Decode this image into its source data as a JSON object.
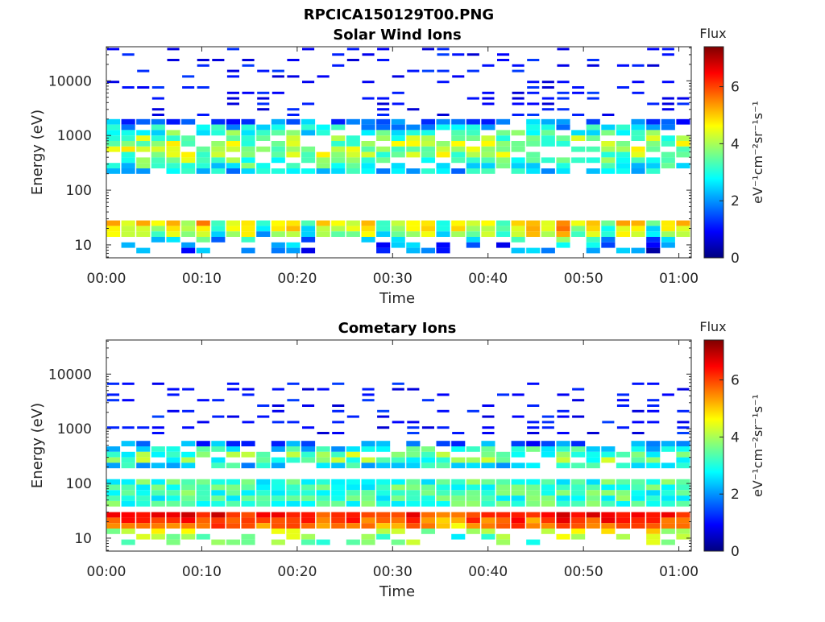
{
  "figure_title": "RPCICA150129T00.PNG",
  "colorbar_label": "Flux",
  "colorbar_unit": "eV⁻¹cm⁻²sr⁻¹s⁻¹",
  "colorbar_ticks": [
    "0",
    "2",
    "4",
    "6"
  ],
  "colorbar_range": [
    0,
    7.4
  ],
  "colormap": "jet",
  "chart_data": [
    {
      "type": "heatmap",
      "title": "Solar Wind Ions",
      "xlabel": "Time",
      "ylabel": "Energy (eV)",
      "x_tick_labels": [
        "00:00",
        "00:10",
        "00:20",
        "00:30",
        "00:40",
        "00:50",
        "01:00"
      ],
      "x_ticks_minutes": [
        0,
        10,
        20,
        30,
        40,
        50,
        60
      ],
      "xlim_minutes": [
        0,
        61.3
      ],
      "y_scale": "log",
      "y_tick_labels": [
        "10",
        "100",
        "1000",
        "10000"
      ],
      "y_ticks": [
        10,
        100,
        1000,
        10000
      ],
      "ylim": [
        5.8,
        42000
      ],
      "n_time_bins": 39,
      "low_energy_band": {
        "energy_eV": [
          15,
          28
        ],
        "flux": [
          5.2,
          4.6,
          4.9,
          4.3,
          5.0,
          4.1,
          5.3,
          3.2,
          4.7,
          5.1,
          3.0,
          4.8,
          5.2,
          3.1,
          4.9,
          4.4,
          4.5,
          5.0,
          3.5,
          4.6,
          4.8,
          5.1,
          3.3,
          4.9,
          4.2,
          4.7,
          3.4,
          5.0,
          5.5,
          4.6,
          5.7,
          4.3,
          5.2,
          3.6,
          5.0,
          4.8,
          3.2,
          4.9,
          5.1
        ]
      },
      "main_band": {
        "energy_eV": [
          200,
          2000
        ],
        "peak_flux": 4.0
      },
      "sparse_high_energy_counts": {
        "energy_eV": [
          2000,
          40000
        ],
        "flux": 0.6
      }
    },
    {
      "type": "heatmap",
      "title": "Cometary Ions",
      "xlabel": "Time",
      "ylabel": "Energy (eV)",
      "x_tick_labels": [
        "00:00",
        "00:10",
        "00:20",
        "00:30",
        "00:40",
        "00:50",
        "01:00"
      ],
      "x_ticks_minutes": [
        0,
        10,
        20,
        30,
        40,
        50,
        60
      ],
      "xlim_minutes": [
        0,
        61.3
      ],
      "y_scale": "log",
      "y_tick_labels": [
        "10",
        "100",
        "1000",
        "10000"
      ],
      "y_ticks": [
        10,
        100,
        1000,
        10000
      ],
      "ylim": [
        5.8,
        42000
      ],
      "n_time_bins": 39,
      "low_energy_band": {
        "energy_eV": [
          15,
          30
        ],
        "flux": [
          6.2,
          6.5,
          6.3,
          6.6,
          6.4,
          6.5,
          6.1,
          6.6,
          6.4,
          6.3,
          6.2,
          6.5,
          6.6,
          6.3,
          5.6,
          6.4,
          6.5,
          6.1,
          5.8,
          6.2,
          6.5,
          6.0,
          5.5,
          5.3,
          6.3,
          5.9,
          6.4,
          6.6,
          5.9,
          6.3,
          6.7,
          6.5,
          6.4,
          6.6,
          6.5,
          6.4,
          6.7,
          6.3,
          6.1
        ]
      },
      "mid_band": {
        "energy_eV": [
          40,
          120
        ],
        "flux": 3.2
      },
      "main_band": {
        "energy_eV": [
          200,
          600
        ],
        "peak_flux": 3.6
      },
      "sparse_high_energy_counts": {
        "energy_eV": [
          700,
          7000
        ],
        "flux": 0.6
      }
    }
  ]
}
